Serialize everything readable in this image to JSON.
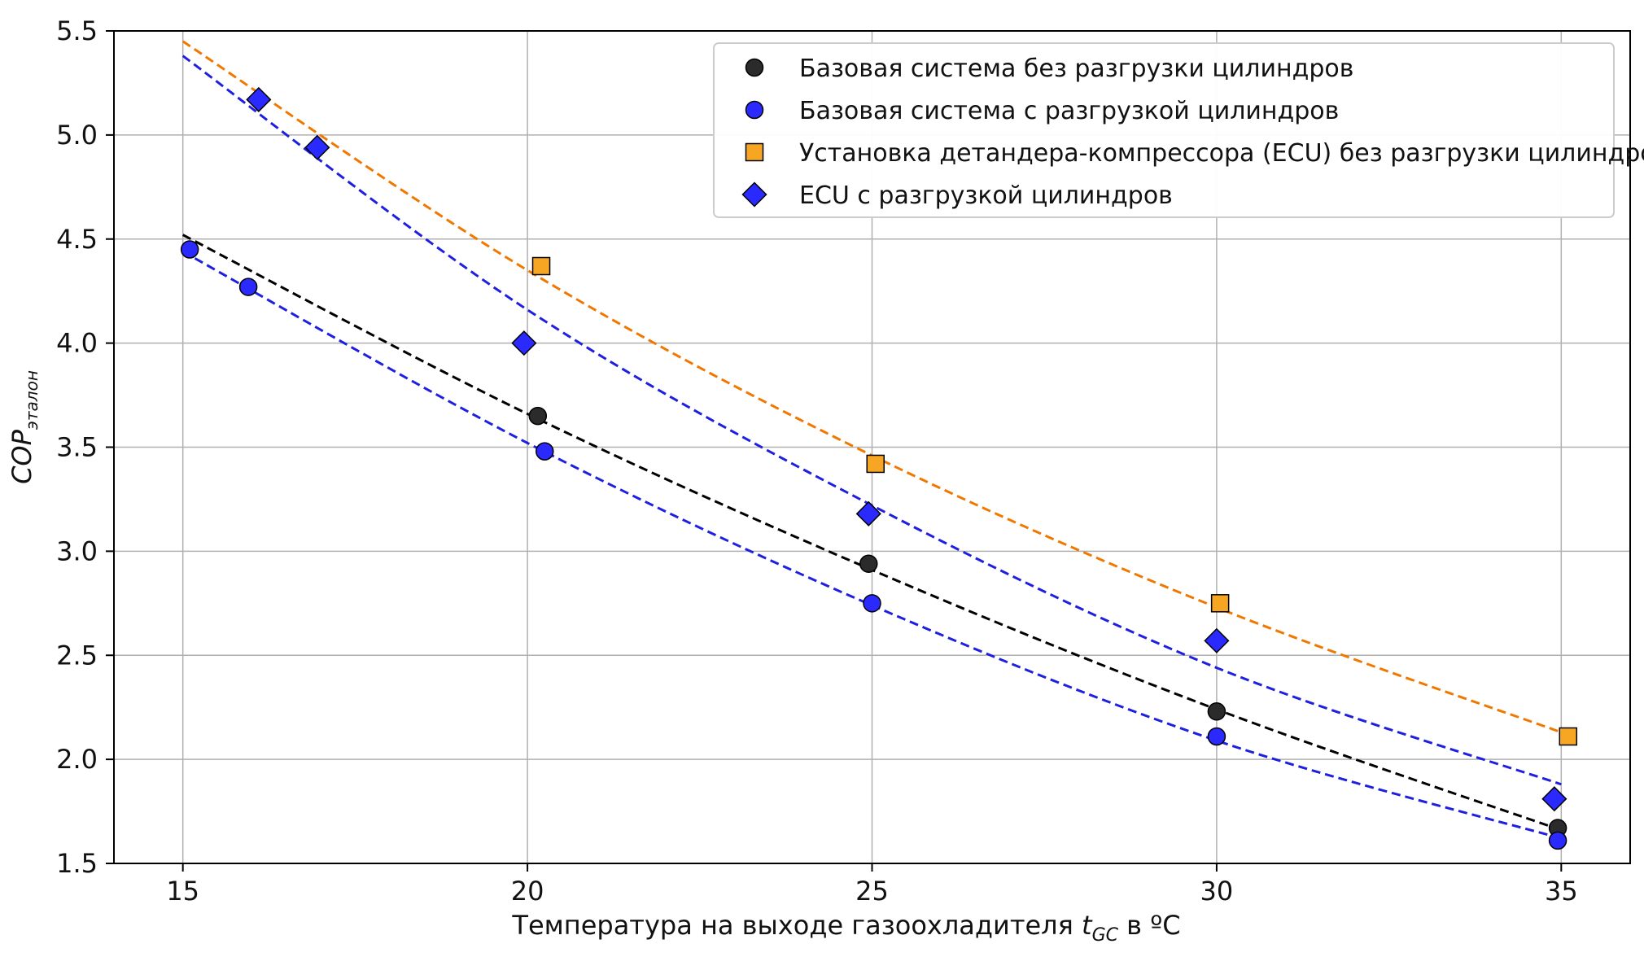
{
  "chart_data": {
    "type": "scatter",
    "title": "",
    "xlabel": {
      "prefix": "Температура на выходе газоохладителя ",
      "symbol": "t",
      "subscript": "GC",
      "suffix": " в ºC"
    },
    "ylabel": {
      "symbol": "COP",
      "subscript": "эталон"
    },
    "xlim": [
      14.0,
      36.0
    ],
    "ylim": [
      1.5,
      5.5
    ],
    "xticks": [
      15,
      20,
      25,
      30,
      35
    ],
    "yticks": [
      1.5,
      2.0,
      2.5,
      3.0,
      3.5,
      4.0,
      4.5,
      5.0,
      5.5
    ],
    "grid": true,
    "legend_position": "top-right",
    "series": [
      {
        "name": "Базовая система без разгрузки цилиндров",
        "marker": "circle",
        "color": "#2b2b2b",
        "line_color": "#000000",
        "points": [
          [
            20.15,
            3.65
          ],
          [
            24.95,
            2.94
          ],
          [
            30.0,
            2.23
          ],
          [
            34.95,
            1.67
          ]
        ],
        "trend_x": [
          15,
          20,
          25,
          30,
          35
        ],
        "trend_y": [
          4.52,
          3.66,
          2.91,
          2.24,
          1.66
        ]
      },
      {
        "name": "Базовая система с разгрузкой цилиндров",
        "marker": "circle",
        "color": "#2a2aff",
        "line_color": "#1f1fe0",
        "points": [
          [
            15.1,
            4.45
          ],
          [
            15.95,
            4.27
          ],
          [
            20.25,
            3.48
          ],
          [
            25.0,
            2.75
          ],
          [
            30.0,
            2.11
          ],
          [
            34.95,
            1.61
          ]
        ],
        "trend_x": [
          15,
          20,
          25,
          30,
          35
        ],
        "trend_y": [
          4.44,
          3.52,
          2.74,
          2.09,
          1.62
        ]
      },
      {
        "name": "Установка детандера-компрессора (ECU) без разгрузки цилиндров",
        "marker": "square",
        "color": "#f6a623",
        "line_color": "#f07800",
        "points": [
          [
            20.2,
            4.37
          ],
          [
            25.05,
            3.42
          ],
          [
            30.05,
            2.75
          ],
          [
            35.1,
            2.11
          ]
        ],
        "trend_x": [
          15,
          20,
          25,
          30,
          35
        ],
        "trend_y": [
          5.45,
          4.35,
          3.46,
          2.73,
          2.13
        ]
      },
      {
        "name": "ECU с разгрузкой цилиндров",
        "marker": "diamond",
        "color": "#2a2aff",
        "line_color": "#1f1fe0",
        "points": [
          [
            16.1,
            5.17
          ],
          [
            16.95,
            4.94
          ],
          [
            19.95,
            4.0
          ],
          [
            24.95,
            3.18
          ],
          [
            30.0,
            2.57
          ],
          [
            34.9,
            1.81
          ]
        ],
        "trend_x": [
          15,
          20,
          25,
          30,
          35
        ],
        "trend_y": [
          5.38,
          4.16,
          3.22,
          2.44,
          1.88
        ]
      }
    ]
  }
}
